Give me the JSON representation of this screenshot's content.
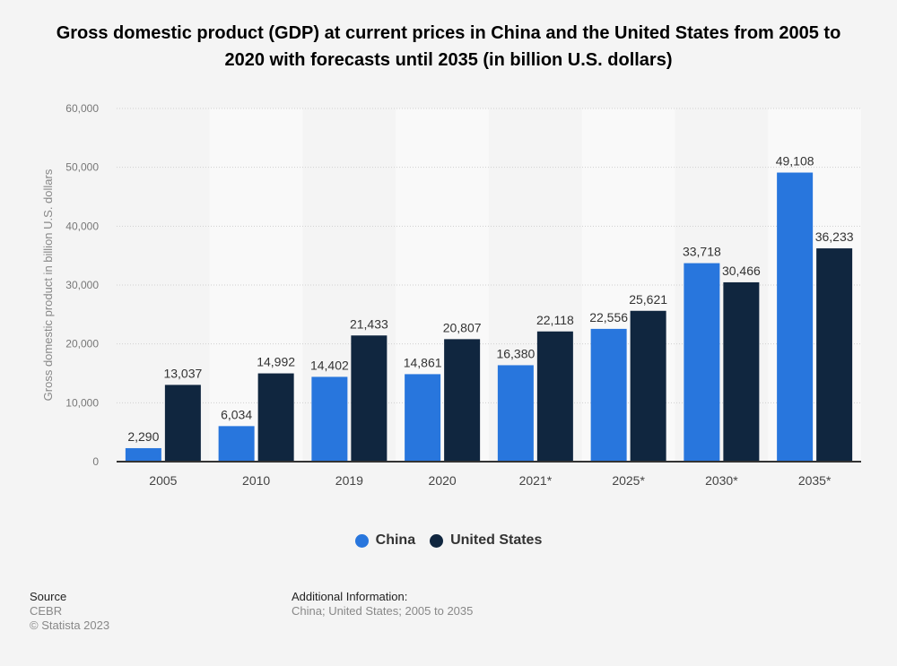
{
  "title": "Gross domestic product (GDP) at current prices in China and the United States from 2005 to 2020 with forecasts until 2035 (in billion U.S. dollars)",
  "chart_data": {
    "type": "bar",
    "title": "Gross domestic product (GDP) at current prices in China and the United States from 2005 to 2020 with forecasts until 2035 (in billion U.S. dollars)",
    "xlabel": "",
    "ylabel": "Gross domestic product in billion U.S. dollars",
    "ylim": [
      0,
      60000
    ],
    "yticks": [
      0,
      10000,
      20000,
      30000,
      40000,
      50000,
      60000
    ],
    "ytick_labels": [
      "0",
      "10,000",
      "20,000",
      "30,000",
      "40,000",
      "50,000",
      "60,000"
    ],
    "grid": true,
    "legend_position": "bottom",
    "categories": [
      "2005",
      "2010",
      "2019",
      "2020",
      "2021*",
      "2025*",
      "2030*",
      "2035*"
    ],
    "series": [
      {
        "name": "China",
        "color": "#2876dd",
        "values": [
          2290,
          6034,
          14402,
          14861,
          16380,
          22556,
          33718,
          49108
        ],
        "labels": [
          "2,290",
          "6,034",
          "14,402",
          "14,861",
          "16,380",
          "22,556",
          "33,718",
          "49,108"
        ]
      },
      {
        "name": "United States",
        "color": "#10263f",
        "values": [
          13037,
          14992,
          21433,
          20807,
          22118,
          25621,
          30466,
          36233
        ],
        "labels": [
          "13,037",
          "14,992",
          "21,433",
          "20,807",
          "22,118",
          "25,621",
          "30,466",
          "36,233"
        ]
      }
    ]
  },
  "legend": {
    "china": "China",
    "us": "United States"
  },
  "footer": {
    "source_label": "Source",
    "source": "CEBR",
    "copyright": "© Statista 2023",
    "info_label": "Additional Information:",
    "info": "China; United States; 2005 to 2035"
  }
}
